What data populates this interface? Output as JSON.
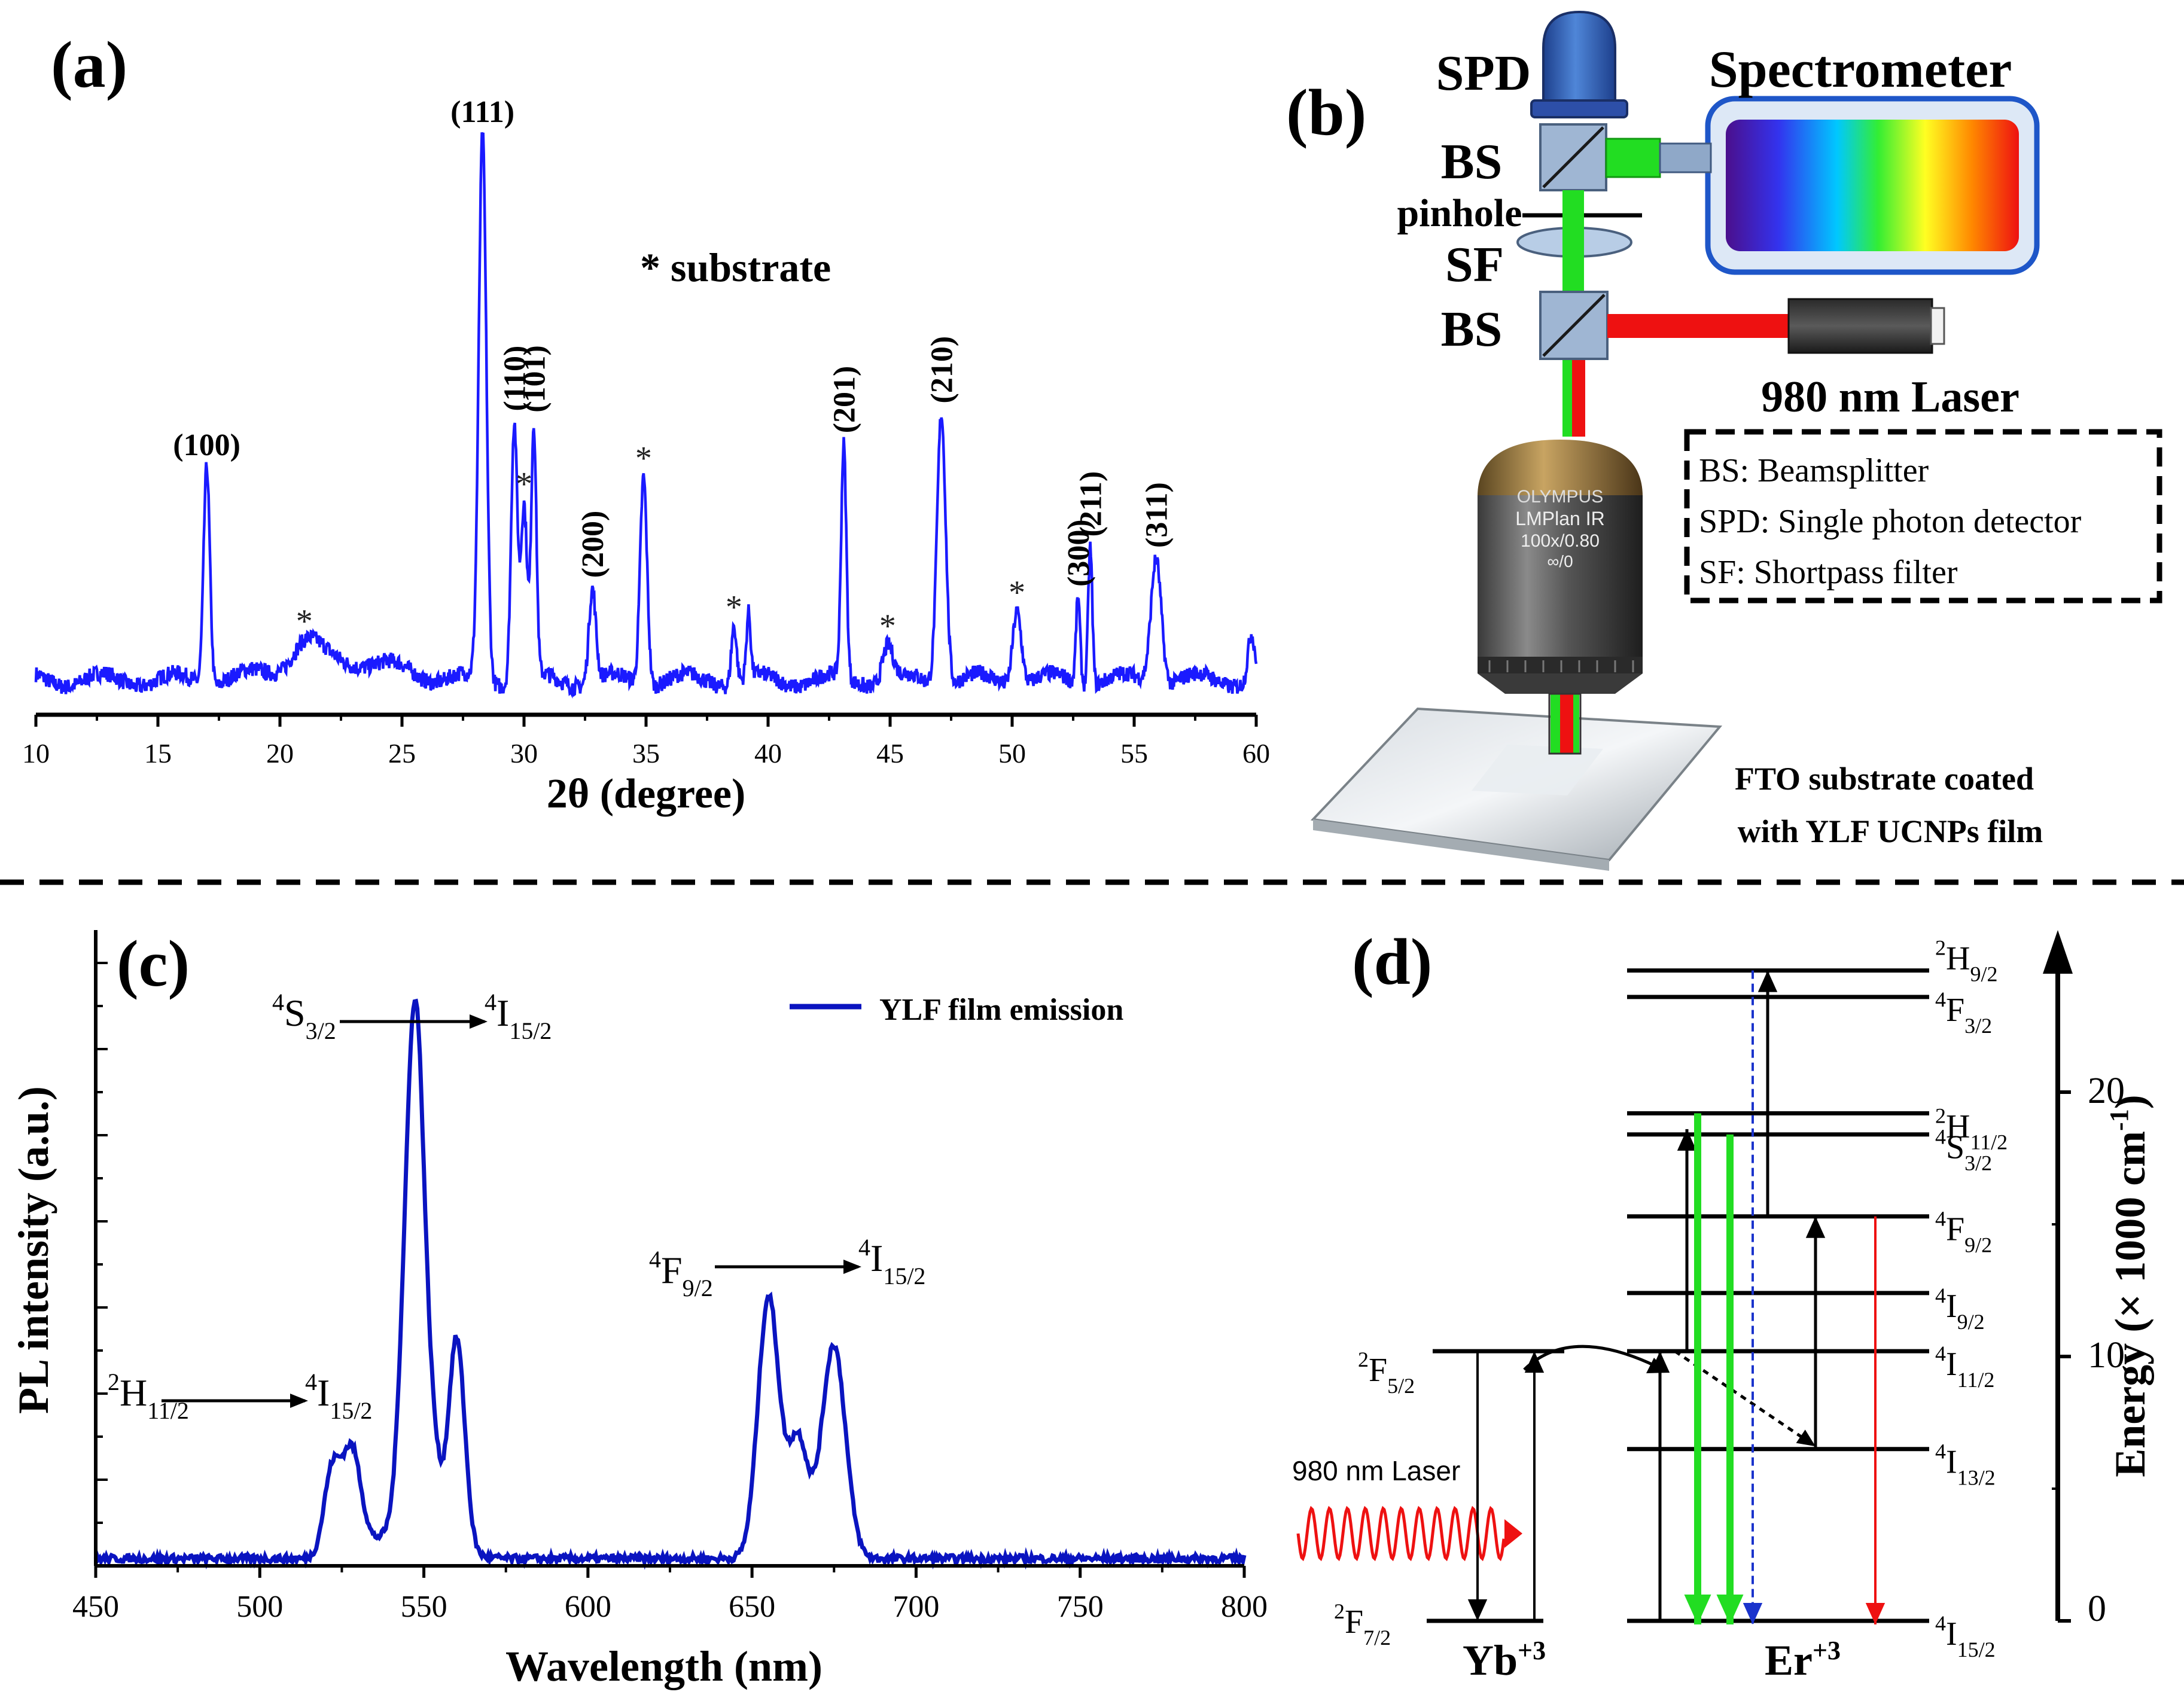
{
  "panels": {
    "a": "(a)",
    "b": "(b)",
    "c": "(c)",
    "d": "(d)"
  },
  "colors": {
    "spectrum": "#1a1aff",
    "pl": "#0a14c0",
    "green": "#22dd22",
    "red": "#ee1111",
    "blue": "#1a33cc",
    "black": "#000000"
  },
  "chart_data": [
    {
      "type": "line",
      "panel": "a",
      "title": "",
      "xlabel": "2θ (degree)",
      "ylabel": "",
      "xlim": [
        10,
        60
      ],
      "xticks": [
        10,
        15,
        20,
        25,
        30,
        35,
        40,
        45,
        50,
        55,
        60
      ],
      "annotation": "* substrate",
      "baseline": 0.06,
      "peaks": [
        {
          "x": 17.0,
          "h": 0.38,
          "w": 0.18,
          "label": "(100)",
          "vertical": false
        },
        {
          "x": 21.0,
          "h": 0.04,
          "w": 0.8,
          "label": "*",
          "vertical": false
        },
        {
          "x": 28.3,
          "h": 0.94,
          "w": 0.22,
          "label": "(111)",
          "vertical": false
        },
        {
          "x": 29.6,
          "h": 0.45,
          "w": 0.18,
          "label": "(110)",
          "vertical": true
        },
        {
          "x": 30.0,
          "h": 0.3,
          "w": 0.18,
          "label": "*",
          "vertical": false
        },
        {
          "x": 30.4,
          "h": 0.43,
          "w": 0.15,
          "label": "(101)",
          "vertical": true
        },
        {
          "x": 32.8,
          "h": 0.16,
          "w": 0.2,
          "label": "(200)",
          "vertical": true
        },
        {
          "x": 34.9,
          "h": 0.36,
          "w": 0.2,
          "label": "*",
          "vertical": false
        },
        {
          "x": 38.6,
          "h": 0.1,
          "w": 0.15,
          "label": "*",
          "vertical": false
        },
        {
          "x": 39.2,
          "h": 0.11,
          "w": 0.12,
          "label": "",
          "vertical": false
        },
        {
          "x": 43.1,
          "h": 0.4,
          "w": 0.15,
          "label": "(201)",
          "vertical": true
        },
        {
          "x": 44.9,
          "h": 0.06,
          "w": 0.3,
          "label": "*",
          "vertical": false
        },
        {
          "x": 47.1,
          "h": 0.47,
          "w": 0.25,
          "label": "(210)",
          "vertical": true
        },
        {
          "x": 50.2,
          "h": 0.13,
          "w": 0.25,
          "label": "*",
          "vertical": false
        },
        {
          "x": 52.7,
          "h": 0.15,
          "w": 0.12,
          "label": "(300)",
          "vertical": true
        },
        {
          "x": 53.2,
          "h": 0.24,
          "w": 0.12,
          "label": "(211)",
          "vertical": true
        },
        {
          "x": 55.9,
          "h": 0.22,
          "w": 0.3,
          "label": "(311)",
          "vertical": true
        },
        {
          "x": 59.8,
          "h": 0.08,
          "w": 0.2,
          "label": "",
          "vertical": false
        }
      ]
    },
    {
      "type": "line",
      "panel": "c",
      "title": "",
      "xlabel": "Wavelength (nm)",
      "ylabel": "PL intensity (a.u.)",
      "xlim": [
        450,
        800
      ],
      "xticks": [
        450,
        500,
        550,
        600,
        650,
        700,
        750,
        800
      ],
      "ylim": [
        0,
        1.05
      ],
      "series": [
        {
          "name": "YLF film emission",
          "peaks": [
            {
              "x": 522,
              "h": 0.14,
              "w": 3.5
            },
            {
              "x": 528,
              "h": 0.17,
              "w": 4
            },
            {
              "x": 545,
              "h": 0.4,
              "w": 3.5
            },
            {
              "x": 548,
              "h": 0.62,
              "w": 3.2
            },
            {
              "x": 552,
              "h": 0.18,
              "w": 3.5
            },
            {
              "x": 560,
              "h": 0.35,
              "w": 3.5
            },
            {
              "x": 655,
              "h": 0.42,
              "w": 4.5
            },
            {
              "x": 664,
              "h": 0.16,
              "w": 4
            },
            {
              "x": 675,
              "h": 0.34,
              "w": 5
            }
          ]
        }
      ],
      "transition_labels": [
        {
          "from_main": "H",
          "from_sup": "2",
          "from_sub": "11/2",
          "to_main": "I",
          "to_sup": "4",
          "to_sub": "15/2"
        },
        {
          "from_main": "S",
          "from_sup": "4",
          "from_sub": "3/2",
          "to_main": "I",
          "to_sup": "4",
          "to_sub": "15/2"
        },
        {
          "from_main": "F",
          "from_sup": "4",
          "from_sub": "9/2",
          "to_main": "I",
          "to_sup": "4",
          "to_sub": "15/2"
        }
      ]
    }
  ],
  "setup": {
    "spd": "SPD",
    "spectrometer": "Spectrometer",
    "bs1": "BS",
    "bs2": "BS",
    "pinhole": "pinhole",
    "sf": "SF",
    "laser": "980 nm Laser",
    "legend": [
      "BS: Beamsplitter",
      "SPD: Single photon detector",
      "SF: Shortpass filter"
    ],
    "objective_brand": "OLYMPUS",
    "objective_line1": "LMPlan IR",
    "objective_line2": "100x/0.80",
    "objective_line3": "∞/0",
    "substrate_line1": "FTO substrate coated",
    "substrate_line2": "with YLF UCNPs film"
  },
  "energy": {
    "axis_label": "Energy (× 1000 cm",
    "axis_sup": "-1",
    "axis_close": ")",
    "ticks": [
      "0",
      "10",
      "20"
    ],
    "yb_label": "Yb",
    "yb_sup": "+3",
    "er_label": "Er",
    "er_sup": "+3",
    "laser_label": "980 nm Laser",
    "yb_levels": [
      {
        "sup": "2",
        "main": "F",
        "sub": "5/2",
        "energy": 10.2
      },
      {
        "sup": "2",
        "main": "F",
        "sub": "7/2",
        "energy": 0
      }
    ],
    "er_levels": [
      {
        "sup": "2",
        "main": "H",
        "sub": "9/2",
        "energy": 24.6
      },
      {
        "sup": "4",
        "main": "F",
        "sub": "3/2",
        "energy": 23.6
      },
      {
        "sup": "2",
        "main": "H",
        "sub": "11/2",
        "energy": 19.2
      },
      {
        "sup": "4",
        "main": "S",
        "sub": "3/2",
        "energy": 18.4
      },
      {
        "sup": "4",
        "main": "F",
        "sub": "9/2",
        "energy": 15.3
      },
      {
        "sup": "4",
        "main": "I",
        "sub": "9/2",
        "energy": 12.4
      },
      {
        "sup": "4",
        "main": "I",
        "sub": "11/2",
        "energy": 10.2
      },
      {
        "sup": "4",
        "main": "I",
        "sub": "13/2",
        "energy": 6.5
      },
      {
        "sup": "4",
        "main": "I",
        "sub": "15/2",
        "energy": 0
      }
    ]
  }
}
